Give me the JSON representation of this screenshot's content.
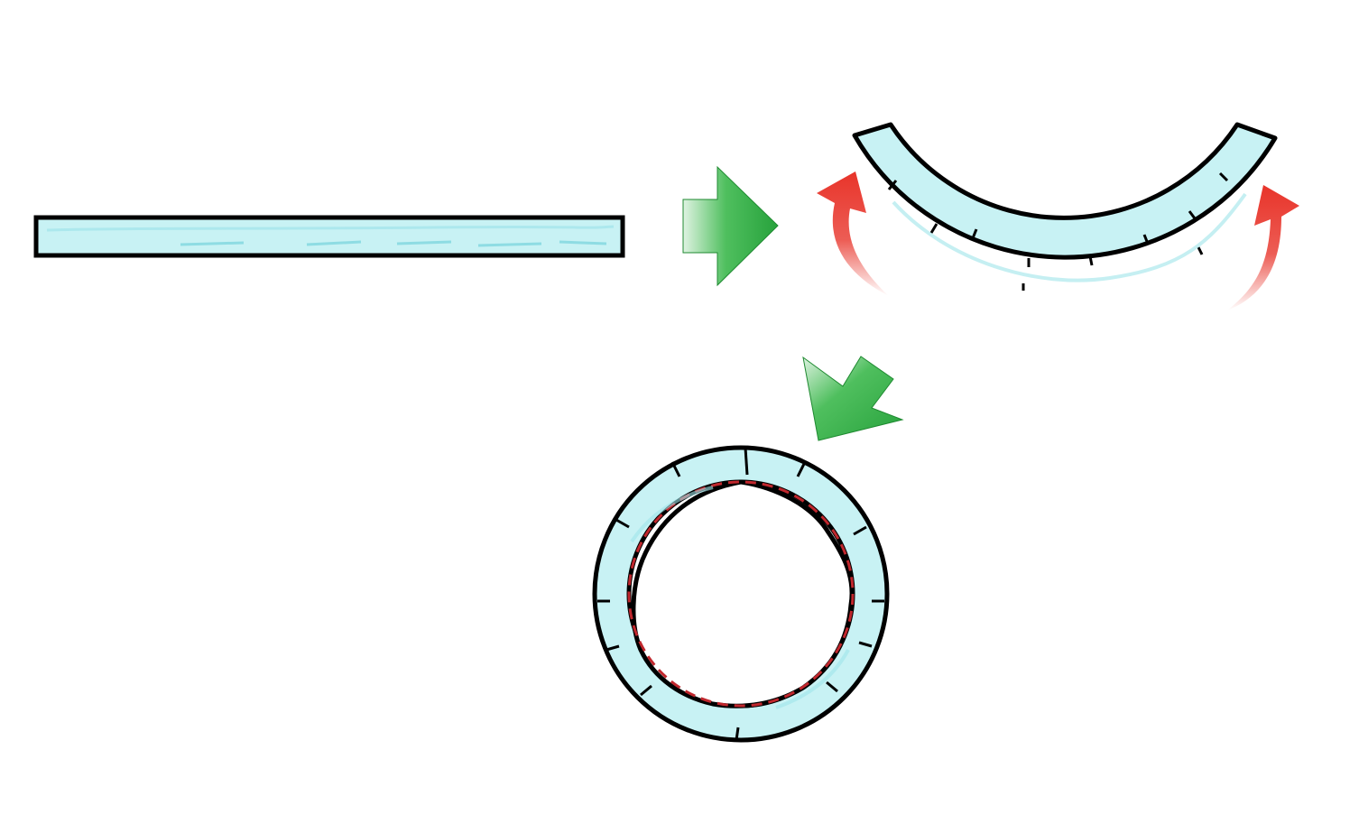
{
  "diagram": {
    "stages": [
      "straight-strip",
      "bent-arc",
      "closed-ring"
    ],
    "colors": {
      "strip_fill": "#c8f2f4",
      "strip_highlight": "#8fdfe6",
      "outline": "#000000",
      "flow_arrow": "#2fae45",
      "flow_arrow_light": "#bfe7c6",
      "bend_arrow": "#e8342a",
      "neutral_axis": "#c0272d"
    },
    "icons": {
      "flow_arrow": "green-block-arrow-icon",
      "bend_arrow": "red-curved-arrow-icon"
    }
  }
}
